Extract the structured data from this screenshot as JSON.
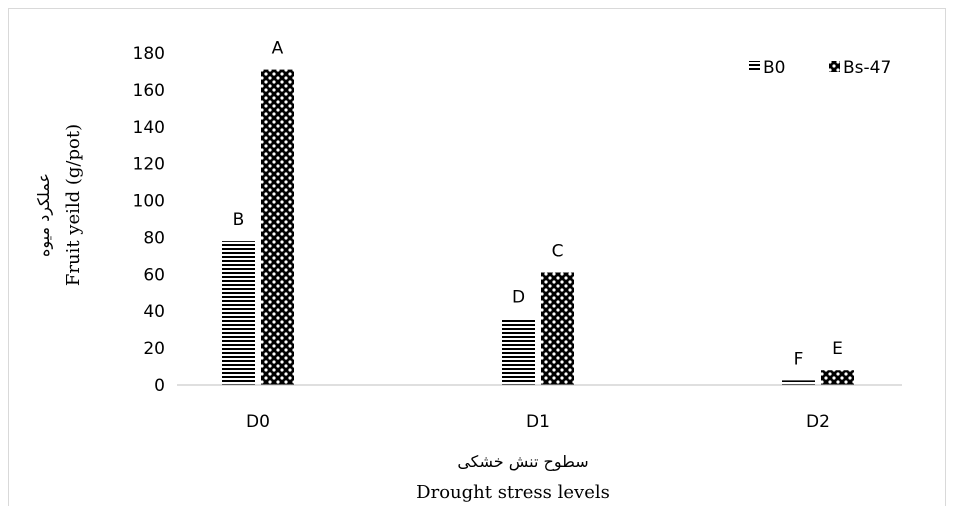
{
  "chart_data": {
    "type": "bar",
    "categories": [
      "D0",
      "D1",
      "D2"
    ],
    "series": [
      {
        "name": "B0",
        "values": [
          78,
          36,
          2.5
        ],
        "labels": [
          "B",
          "D",
          "F"
        ],
        "pattern": "horizontal-lines"
      },
      {
        "name": "Bs-47",
        "values": [
          171,
          61,
          8
        ],
        "labels": [
          "A",
          "C",
          "E"
        ],
        "pattern": "checker-dots"
      }
    ],
    "ylim": [
      0,
      180
    ],
    "yticks": [
      0,
      20,
      40,
      60,
      80,
      100,
      120,
      140,
      160,
      180
    ],
    "ylabel_en": "Fruit yeild (g/pot)",
    "ylabel_fa": "عملکرد میوه",
    "xlabel_en": "Drought stress levels",
    "xlabel_fa": "سطوح تنش خشکی",
    "legend_position": "top-right",
    "grid": false
  }
}
